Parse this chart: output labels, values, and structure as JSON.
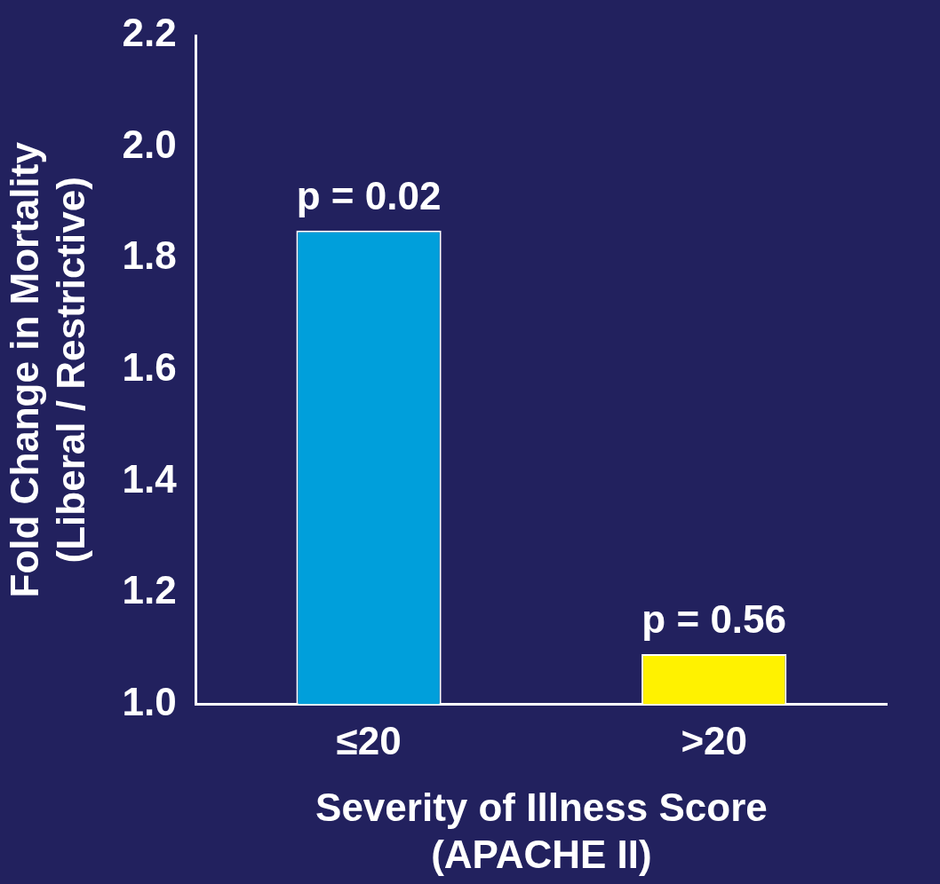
{
  "chart_data": {
    "type": "bar",
    "xlabel": "Severity of Illness Score\n(APACHE II)",
    "ylabel": "Fold Change in Mortality\n(Liberal / Restrictive)",
    "categories": [
      "≤20",
      ">20"
    ],
    "values": [
      1.85,
      1.09
    ],
    "colors": [
      "#009fdb",
      "#fff200"
    ],
    "ylim": [
      1.0,
      2.2
    ],
    "yticks": [
      {
        "value": 1.0,
        "label": "1.0"
      },
      {
        "value": 1.2,
        "label": "1.2"
      },
      {
        "value": 1.4,
        "label": "1.4"
      },
      {
        "value": 1.6,
        "label": "1.6"
      },
      {
        "value": 1.8,
        "label": "1.8"
      },
      {
        "value": 2.0,
        "label": "2.0"
      },
      {
        "value": 2.2,
        "label": "2.2"
      }
    ],
    "annotations": [
      {
        "text": "p = 0.02",
        "x": "≤20",
        "y": 1.85
      },
      {
        "text": "p = 0.56",
        "x": ">20",
        "y": 1.09
      }
    ],
    "grid": false,
    "legend": false
  }
}
